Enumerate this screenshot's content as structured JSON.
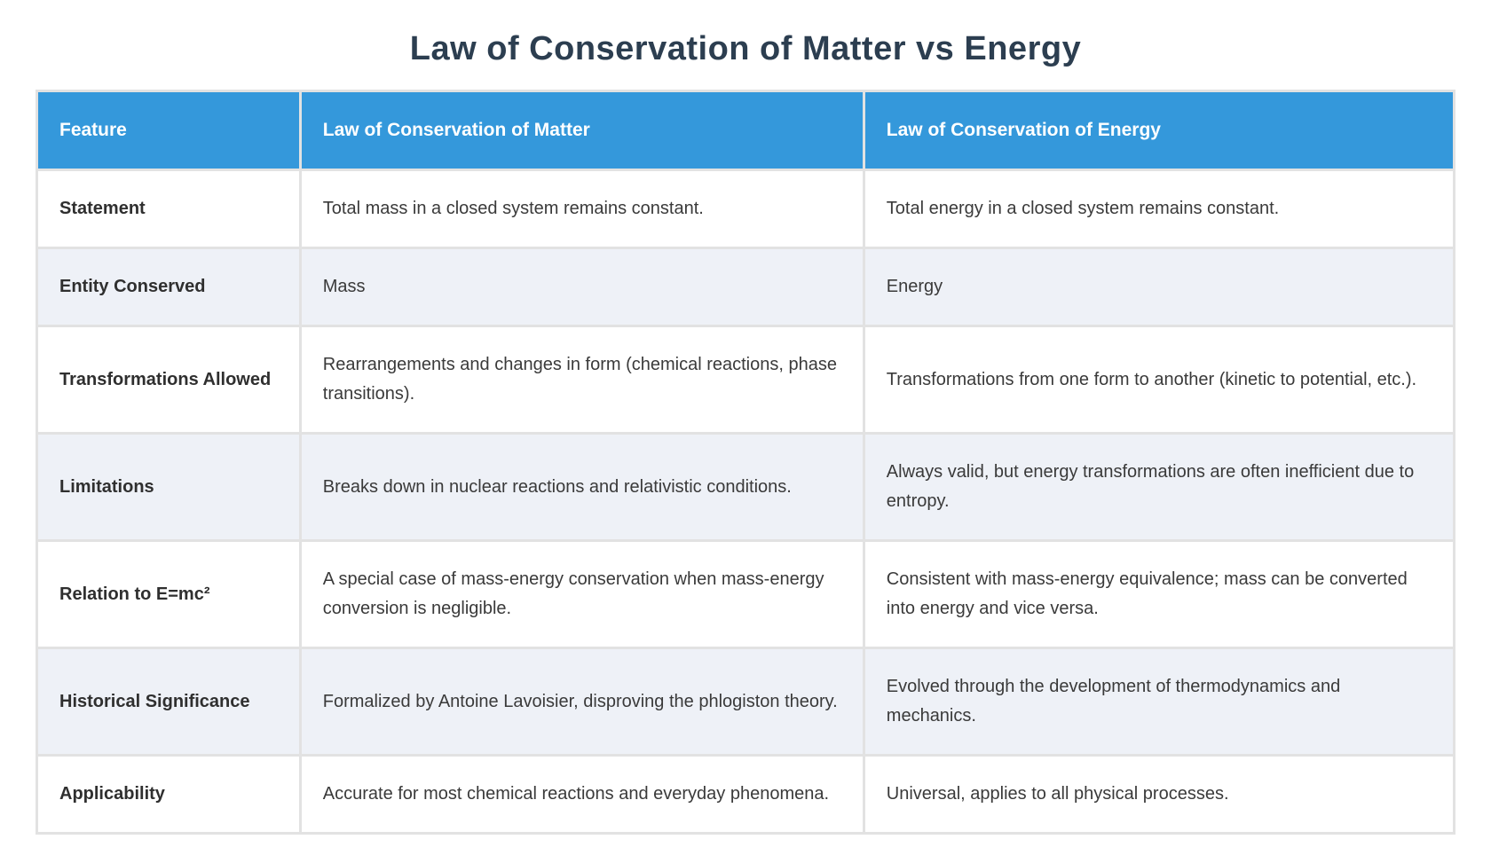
{
  "page": {
    "title": "Law of Conservation of Matter vs Energy"
  },
  "colors": {
    "header_bg": "#3498db",
    "header_text": "#ffffff",
    "row_bg": "#ffffff",
    "row_alt_bg": "#eef1f7",
    "title_text": "#2c3e50",
    "body_text": "#3a3a3a",
    "grid": "#e2e2e2"
  },
  "table": {
    "columns": [
      "Feature",
      "Law of Conservation of Matter",
      "Law of Conservation of Energy"
    ],
    "rows": [
      {
        "feature": "Statement",
        "matter": "Total mass in a closed system remains constant.",
        "energy": "Total energy in a closed system remains constant."
      },
      {
        "feature": "Entity Conserved",
        "matter": "Mass",
        "energy": "Energy"
      },
      {
        "feature": "Transformations Allowed",
        "matter": "Rearrangements and changes in form (chemical reactions, phase transitions).",
        "energy": "Transformations from one form to another (kinetic to potential, etc.)."
      },
      {
        "feature": "Limitations",
        "matter": "Breaks down in nuclear reactions and relativistic conditions.",
        "energy": "Always valid, but energy transformations are often inefficient due to entropy."
      },
      {
        "feature": "Relation to E=mc²",
        "matter": "A special case of mass-energy conservation when mass-energy conversion is negligible.",
        "energy": "Consistent with mass-energy equivalence; mass can be converted into energy and vice versa."
      },
      {
        "feature": "Historical Significance",
        "matter": "Formalized by Antoine Lavoisier, disproving the phlogiston theory.",
        "energy": "Evolved through the development of thermodynamics and mechanics."
      },
      {
        "feature": "Applicability",
        "matter": "Accurate for most chemical reactions and everyday phenomena.",
        "energy": "Universal, applies to all physical processes."
      }
    ]
  }
}
